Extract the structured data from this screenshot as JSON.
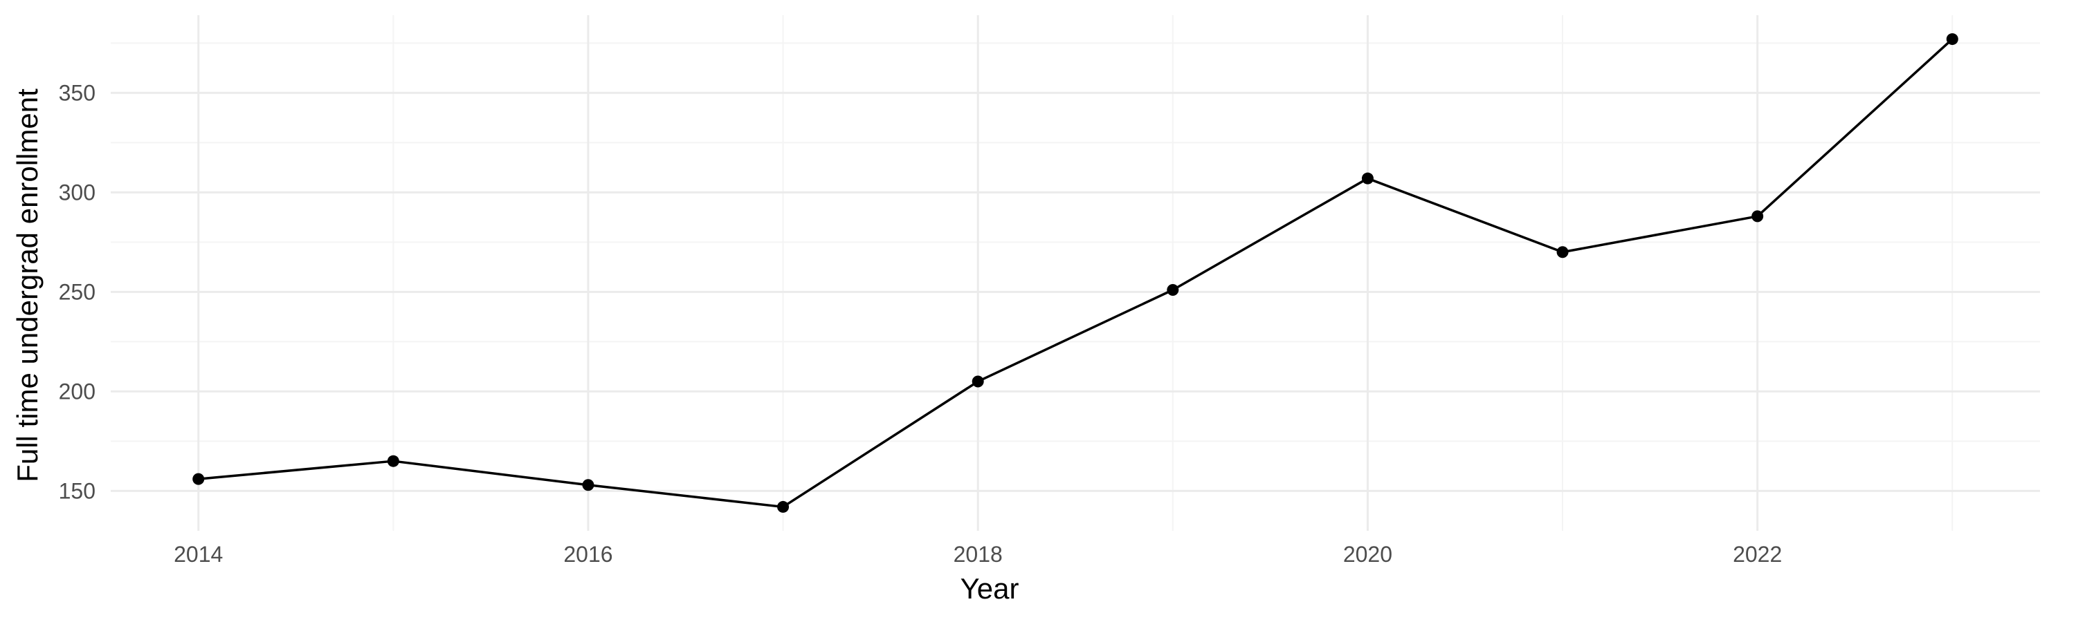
{
  "chart_data": {
    "type": "line",
    "title": "",
    "xlabel": "Year",
    "ylabel": "Full time undergrad enrollment",
    "x": [
      2014,
      2015,
      2016,
      2017,
      2018,
      2019,
      2020,
      2021,
      2022,
      2023
    ],
    "series": [
      {
        "values": [
          156,
          165,
          153,
          142,
          205,
          251,
          307,
          270,
          288,
          377
        ]
      }
    ],
    "xlim": [
      2013.55,
      2023.45
    ],
    "ylim": [
      130,
      389
    ],
    "x_ticks": [
      2014,
      2016,
      2018,
      2020,
      2022
    ],
    "x_tick_labels": [
      "2014",
      "2016",
      "2018",
      "2020",
      "2022"
    ],
    "y_ticks": [
      150,
      200,
      250,
      300,
      350
    ],
    "y_tick_labels": [
      "150",
      "200",
      "250",
      "300",
      "350"
    ],
    "x_minor_ticks": [
      2015,
      2017,
      2019,
      2021,
      2023
    ],
    "y_minor_ticks": [
      125,
      175,
      225,
      275,
      325,
      375
    ],
    "grid": true,
    "legend": "none",
    "colors": {
      "line": "#000000",
      "point": "#000000",
      "grid_major": "#ebebeb",
      "grid_minor": "#f4f4f4",
      "tick_text": "#4d4d4d",
      "axis_title": "#000000",
      "background": "#ffffff"
    }
  }
}
